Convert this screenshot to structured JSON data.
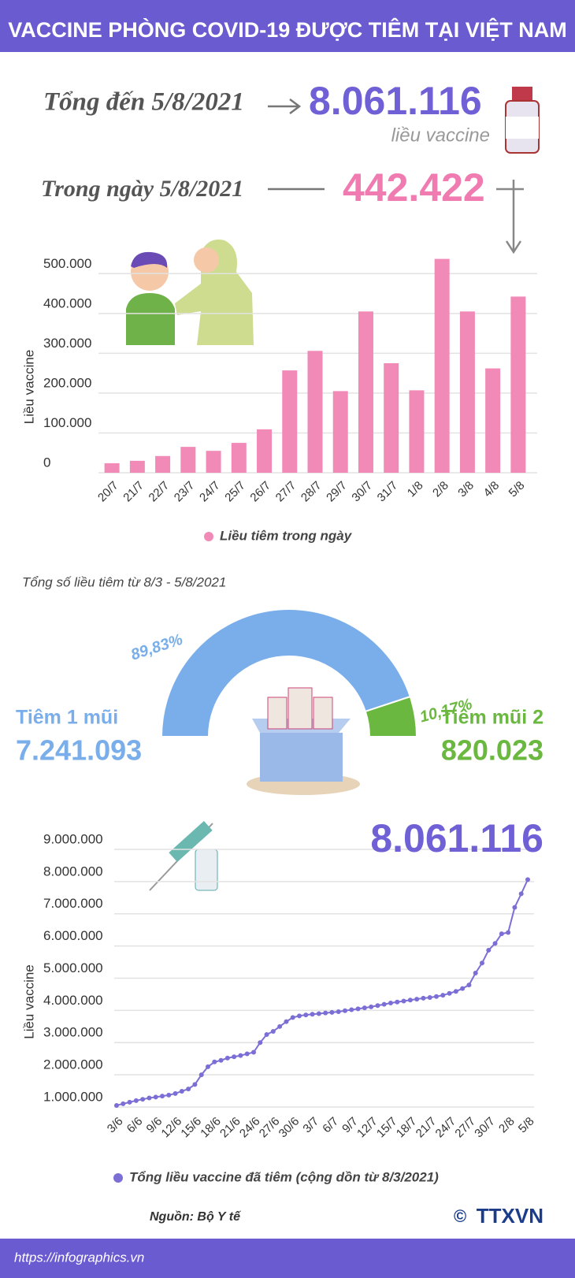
{
  "title": "VACCINE PHÒNG COVID-19 ĐƯỢC TIÊM TẠI VIỆT NAM",
  "summary": {
    "total_label": "Tổng đến 5/8/2021",
    "total": "8.061.116",
    "total_unit": "liều vaccine",
    "day_label": "Trong ngày 5/8/2021",
    "day": "442.422"
  },
  "chart_data": [
    {
      "type": "bar",
      "y_label": "Liều vaccine",
      "categories": [
        "20/7",
        "21/7",
        "22/7",
        "23/7",
        "24/7",
        "25/7",
        "26/7",
        "27/7",
        "28/7",
        "29/7",
        "30/7",
        "31/7",
        "1/8",
        "2/8",
        "3/8",
        "4/8",
        "5/8"
      ],
      "series": [
        {
          "name": "Liều tiêm trong ngày",
          "color": "#f28ab8",
          "values": [
            24000,
            30000,
            42000,
            65000,
            55000,
            75000,
            109000,
            257000,
            306000,
            205000,
            405000,
            275000,
            207000,
            537000,
            405000,
            262000,
            442422
          ]
        }
      ],
      "ylim": [
        0,
        550000
      ],
      "yticks": [
        0,
        {
          "value": 100000,
          "label": "100.000"
        },
        {
          "value": 200000,
          "label": "200.000"
        },
        {
          "value": 300000,
          "label": "300.000"
        },
        {
          "value": 400000,
          "label": "400.000"
        },
        {
          "value": 500000,
          "label": "500.000"
        }
      ],
      "grid": true
    },
    {
      "type": "pie",
      "title": "Tổng số liều tiêm từ 8/3 - 5/8/2021",
      "categories": [
        "Tiêm 1 mũi",
        "Tiêm mũi 2"
      ],
      "values": [
        89.83,
        10.17
      ],
      "value_labels": [
        "89,83%",
        "10,17%"
      ],
      "totals": [
        "7.241.093",
        "820.023"
      ],
      "colors": [
        "#7aaeea",
        "#6ab83f"
      ]
    },
    {
      "type": "line",
      "y_label": "Liều vaccine",
      "annotation": "8.061.116",
      "categories": [
        "3/6",
        null,
        null,
        "6/6",
        null,
        null,
        "9/6",
        null,
        null,
        "12/6",
        null,
        null,
        "15/6",
        null,
        null,
        "18/6",
        null,
        null,
        "21/6",
        null,
        null,
        "24/6",
        null,
        null,
        "27/6",
        null,
        null,
        "30/6",
        null,
        null,
        "3/7",
        null,
        null,
        "6/7",
        null,
        null,
        "9/7",
        null,
        null,
        "12/7",
        null,
        null,
        "15/7",
        null,
        null,
        "18/7",
        null,
        null,
        "21/7",
        null,
        null,
        "24/7",
        null,
        null,
        "27/7",
        null,
        null,
        "30/7",
        null,
        null,
        "2/8",
        null,
        null,
        "5/8"
      ],
      "series": [
        {
          "name": "Tổng liều vaccine đã tiêm (cộng dồn từ 8/3/2021)",
          "color": "#7b6fd6",
          "values": [
            1050000,
            1100000,
            1150000,
            1200000,
            1240000,
            1280000,
            1310000,
            1340000,
            1370000,
            1420000,
            1490000,
            1560000,
            1700000,
            2000000,
            2250000,
            2400000,
            2450000,
            2520000,
            2560000,
            2600000,
            2650000,
            2700000,
            3000000,
            3250000,
            3350000,
            3500000,
            3650000,
            3780000,
            3830000,
            3860000,
            3880000,
            3900000,
            3920000,
            3940000,
            3960000,
            3990000,
            4020000,
            4050000,
            4080000,
            4110000,
            4150000,
            4190000,
            4230000,
            4260000,
            4290000,
            4320000,
            4350000,
            4380000,
            4400000,
            4430000,
            4470000,
            4530000,
            4590000,
            4680000,
            4790000,
            5160000,
            5470000,
            5870000,
            6080000,
            6380000,
            6420000,
            7200000,
            7620000,
            8061116
          ]
        }
      ],
      "ylim": [
        1000000,
        9000000
      ],
      "yticks": [
        {
          "value": 1000000,
          "label": "1.000.000"
        },
        {
          "value": 2000000,
          "label": "2.000.000"
        },
        {
          "value": 3000000,
          "label": "3.000.000"
        },
        {
          "value": 4000000,
          "label": "4.000.000"
        },
        {
          "value": 5000000,
          "label": "5.000.000"
        },
        {
          "value": 6000000,
          "label": "6.000.000"
        },
        {
          "value": 7000000,
          "label": "7.000.000"
        },
        {
          "value": 8000000,
          "label": "8.000.000"
        },
        {
          "value": 9000000,
          "label": "9.000.000"
        }
      ],
      "grid": true
    }
  ],
  "source": "Nguồn: Bộ Y tế",
  "url": "https://infographics.vn",
  "logo": "TTXVN"
}
